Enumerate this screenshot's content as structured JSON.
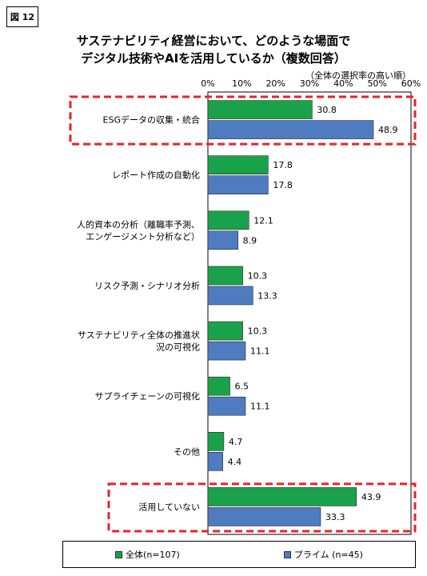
{
  "figure_label": "図 12",
  "title_line1": "サステナビリティ経営において、どのような場面で",
  "title_line2": "デジタル技術やAIを活用しているか（複数回答）",
  "sort_note": "（全体の選択率の高い順）",
  "colors": {
    "all": "#1aa24a",
    "prime": "#4f7bc0",
    "highlight": "#e8232a"
  },
  "chart_data": {
    "type": "bar",
    "orientation": "horizontal",
    "xlim": [
      0,
      60
    ],
    "x_ticks": [
      "0%",
      "10%",
      "20%",
      "30%",
      "40%",
      "50%",
      "60%"
    ],
    "grid": false,
    "legend_position": "bottom",
    "categories": [
      [
        "ESGデータの収集・統合"
      ],
      [
        "レポート作成の自動化"
      ],
      [
        "人的資本の分析（離職率予測、",
        "エンゲージメント分析など）"
      ],
      [
        "リスク予測・シナリオ分析"
      ],
      [
        "サステナビリティ全体の推進状",
        "況の可視化"
      ],
      [
        "サプライチェーンの可視化"
      ],
      [
        "その他"
      ],
      [
        "活用していない"
      ]
    ],
    "series": [
      {
        "name": "全体(n=107)",
        "values": [
          30.8,
          17.8,
          12.1,
          10.3,
          10.3,
          6.5,
          4.7,
          43.9
        ],
        "labels": [
          "30.8",
          "17.8",
          "12.1",
          "10.3",
          "10.3",
          "6.5",
          "4.7",
          "43.9"
        ]
      },
      {
        "name": "プライム (n=45)",
        "values": [
          48.9,
          17.8,
          8.9,
          13.3,
          11.1,
          11.1,
          4.4,
          33.3
        ],
        "labels": [
          "48.9",
          "17.8",
          "8.9",
          "13.3",
          "11.1",
          "11.1",
          "4.4",
          "33.3"
        ]
      }
    ],
    "highlighted_categories": [
      0,
      7
    ]
  }
}
